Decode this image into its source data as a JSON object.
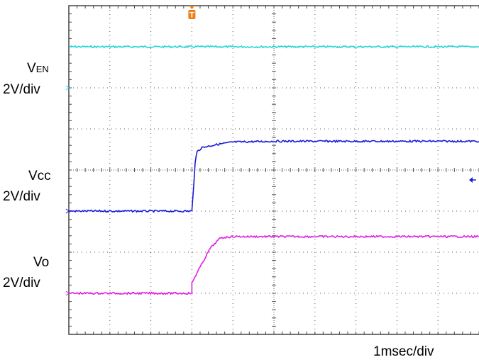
{
  "chart_data": {
    "type": "line",
    "title": "",
    "grid": true,
    "divisions": {
      "x": 10,
      "y": 8
    },
    "timebase": "1msec/div",
    "trigger_marker": {
      "label": "T",
      "color": "#f07f16"
    },
    "trigger_time_div": 3,
    "series": [
      {
        "name": "VEN",
        "label_main": "V",
        "label_sub": "EN",
        "scale": "2V/div",
        "color": "#22d6d8",
        "points": [
          [
            0,
            7.0
          ],
          [
            10,
            7.0
          ]
        ]
      },
      {
        "name": "Vcc",
        "scale": "2V/div",
        "color": "#1a1ad6",
        "points": [
          [
            0,
            3.0
          ],
          [
            3.0,
            3.0
          ],
          [
            3.03,
            3.4
          ],
          [
            3.08,
            4.2
          ],
          [
            3.13,
            4.45
          ],
          [
            3.25,
            4.55
          ],
          [
            3.6,
            4.62
          ],
          [
            4.0,
            4.68
          ],
          [
            5.0,
            4.7
          ],
          [
            10,
            4.7
          ]
        ]
      },
      {
        "name": "Vo",
        "scale": "2V/div",
        "color": "#e01ee0",
        "points": [
          [
            0,
            1.0
          ],
          [
            3.0,
            1.0
          ],
          [
            3.0,
            1.25
          ],
          [
            3.1,
            1.45
          ],
          [
            3.45,
            2.1
          ],
          [
            3.7,
            2.35
          ],
          [
            4.0,
            2.38
          ],
          [
            10,
            2.38
          ]
        ]
      }
    ],
    "channel_markers": [
      {
        "channel": "VEN",
        "color": "#22d6d8",
        "level_div": 6.0
      },
      {
        "channel": "Vcc",
        "color": "#1a1ad6",
        "level_div": 3.0
      },
      {
        "channel": "Vo",
        "color": "#e01ee0",
        "level_div": 1.0
      }
    ],
    "reference_marker": {
      "color": "#1a1ad6",
      "level_div": 4.0
    }
  }
}
